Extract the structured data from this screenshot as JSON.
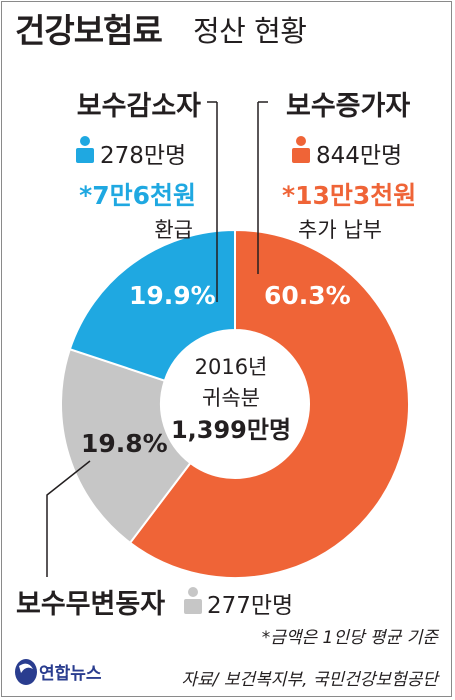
{
  "title": {
    "main": "건강보험료",
    "sub": "정산 현황"
  },
  "colors": {
    "decrease": "#1fa8e1",
    "increase": "#ef6437",
    "unchanged": "#c6c6c6",
    "text": "#231f20"
  },
  "center": {
    "line1": "2016년",
    "line2": "귀속분",
    "line3": "1,399만명"
  },
  "groups": {
    "decrease": {
      "name": "보수감소자",
      "count": "278만명",
      "amount": "*7만6천원",
      "action": "환급",
      "icon": "person-icon"
    },
    "increase": {
      "name": "보수증가자",
      "count": "844만명",
      "amount": "*13만3천원",
      "action": "추가 납부",
      "icon": "person-icon"
    },
    "unchanged": {
      "name": "보수무변동자",
      "count": "277만명",
      "icon": "person-icon"
    }
  },
  "footnote": "*금액은 1인당 평균 기준",
  "source": "자료/ 보건복지부, 국민건강보험공단",
  "logo": "연합뉴스",
  "chart_data": {
    "type": "pie",
    "donut": true,
    "categories": [
      "보수증가자",
      "보수무변동자",
      "보수감소자"
    ],
    "values": [
      60.3,
      19.8,
      19.9
    ],
    "value_labels": [
      "60.3%",
      "19.8%",
      "19.9%"
    ],
    "unit": "%"
  }
}
